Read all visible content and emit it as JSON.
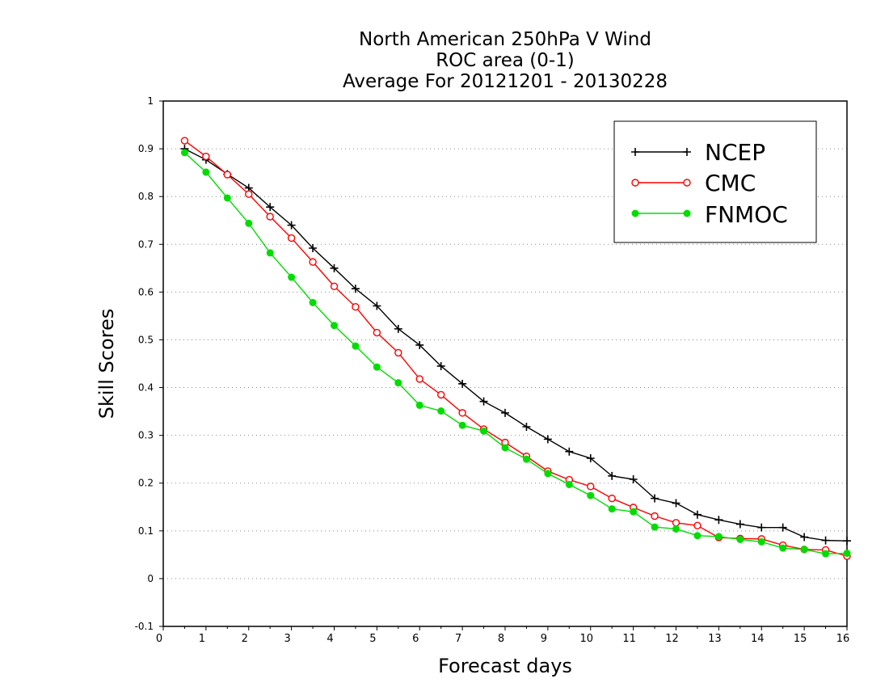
{
  "chart_data": {
    "type": "line",
    "title": [
      "North American 250hPa V Wind",
      "ROC area (0-1)",
      "Average For 20121201 - 20130228"
    ],
    "xlabel": "Forecast days",
    "ylabel": "Skill Scores",
    "xlim": [
      0,
      16
    ],
    "ylim": [
      -0.1,
      1
    ],
    "x_ticks": [
      "0",
      "1",
      "2",
      "3",
      "4",
      "5",
      "6",
      "7",
      "8",
      "9",
      "10",
      "11",
      "12",
      "13",
      "14",
      "15",
      "16"
    ],
    "y_ticks": [
      "-0.1",
      "0",
      "0.1",
      "0.2",
      "0.3",
      "0.4",
      "0.5",
      "0.6",
      "0.7",
      "0.8",
      "0.9",
      "1"
    ],
    "grid": "horizontal dotted",
    "legend_position": "top-right",
    "x": [
      0.5,
      1,
      1.5,
      2,
      2.5,
      3,
      3.5,
      4,
      4.5,
      5,
      5.5,
      6,
      6.5,
      7,
      7.5,
      8,
      8.5,
      9,
      9.5,
      10,
      10.5,
      11,
      11.5,
      12,
      12.5,
      13,
      13.5,
      14,
      14.5,
      15,
      15.5,
      16
    ],
    "series": [
      {
        "name": "NCEP",
        "color": "#000000",
        "marker": "plus",
        "values": [
          0.9,
          0.877,
          0.847,
          0.818,
          0.778,
          0.74,
          0.692,
          0.65,
          0.607,
          0.571,
          0.523,
          0.489,
          0.445,
          0.408,
          0.371,
          0.347,
          0.318,
          0.292,
          0.266,
          0.252,
          0.215,
          0.208,
          0.168,
          0.158,
          0.134,
          0.123,
          0.114,
          0.107,
          0.107,
          0.087,
          0.08,
          0.079
        ]
      },
      {
        "name": "CMC",
        "color": "#ff0000",
        "marker": "open-circle",
        "values": [
          0.917,
          0.884,
          0.846,
          0.805,
          0.758,
          0.713,
          0.663,
          0.612,
          0.569,
          0.515,
          0.473,
          0.418,
          0.385,
          0.347,
          0.313,
          0.285,
          0.256,
          0.225,
          0.207,
          0.193,
          0.168,
          0.149,
          0.131,
          0.117,
          0.111,
          0.086,
          0.084,
          0.083,
          0.07,
          0.061,
          0.06,
          0.047
        ]
      },
      {
        "name": "FNMOC",
        "color": "#00dd00",
        "marker": "filled-circle",
        "values": [
          0.892,
          0.851,
          0.797,
          0.744,
          0.682,
          0.631,
          0.578,
          0.53,
          0.487,
          0.443,
          0.41,
          0.363,
          0.351,
          0.321,
          0.309,
          0.274,
          0.25,
          0.22,
          0.197,
          0.174,
          0.146,
          0.14,
          0.108,
          0.104,
          0.09,
          0.088,
          0.082,
          0.077,
          0.064,
          0.061,
          0.052,
          0.053
        ]
      }
    ]
  }
}
